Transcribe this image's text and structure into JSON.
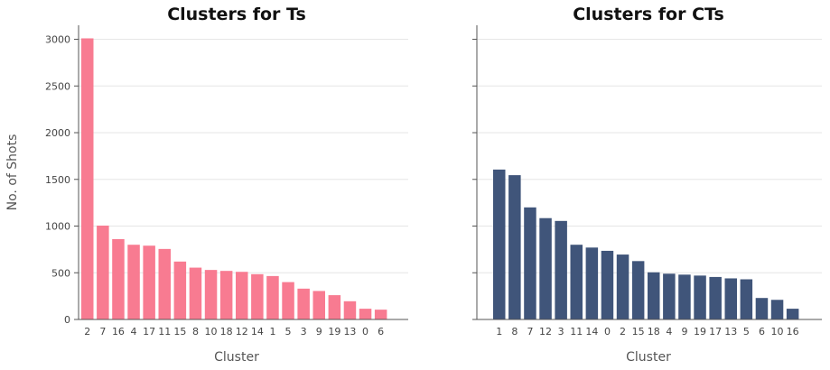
{
  "chart_data": [
    {
      "type": "bar",
      "title": "Clusters for Ts",
      "xlabel": "Cluster",
      "ylabel": "No. of Shots",
      "categories": [
        "2",
        "7",
        "16",
        "4",
        "17",
        "11",
        "15",
        "8",
        "10",
        "18",
        "12",
        "14",
        "1",
        "5",
        "3",
        "9",
        "19",
        "13",
        "0",
        "6"
      ],
      "values": [
        3010,
        1005,
        860,
        800,
        790,
        755,
        620,
        555,
        530,
        520,
        510,
        485,
        465,
        400,
        330,
        305,
        260,
        195,
        115,
        105
      ],
      "ylim": [
        0,
        3150
      ],
      "yticks": [
        0,
        500,
        1000,
        1500,
        2000,
        2500,
        3000
      ],
      "color": "#f87b91",
      "grid": "y"
    },
    {
      "type": "bar",
      "title": "Clusters for CTs",
      "xlabel": "Cluster",
      "ylabel": "",
      "categories": [
        "1",
        "8",
        "7",
        "12",
        "3",
        "11",
        "14",
        "0",
        "2",
        "15",
        "18",
        "4",
        "9",
        "19",
        "17",
        "13",
        "5",
        "6",
        "10",
        "16"
      ],
      "values": [
        1605,
        1545,
        1200,
        1085,
        1055,
        800,
        770,
        735,
        695,
        625,
        505,
        490,
        480,
        470,
        455,
        440,
        430,
        230,
        210,
        115
      ],
      "ylim": [
        0,
        3150
      ],
      "yticks": [
        0,
        500,
        1000,
        1500,
        2000,
        2500,
        3000
      ],
      "color": "#40557a",
      "grid": "y"
    }
  ]
}
